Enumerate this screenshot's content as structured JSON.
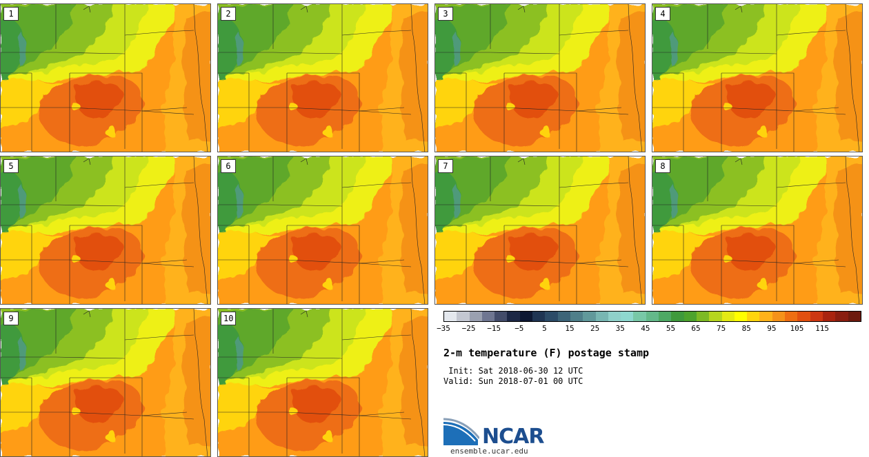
{
  "panels": [
    {
      "label": "1"
    },
    {
      "label": "2"
    },
    {
      "label": "3"
    },
    {
      "label": "4"
    },
    {
      "label": "5"
    },
    {
      "label": "6"
    },
    {
      "label": "7"
    },
    {
      "label": "8"
    },
    {
      "label": "9"
    },
    {
      "label": "10"
    }
  ],
  "legend": {
    "ticks": [
      "-35",
      "-25",
      "-15",
      "-5",
      "5",
      "15",
      "25",
      "35",
      "45",
      "55",
      "65",
      "75",
      "85",
      "95",
      "105",
      "115"
    ],
    "colors": [
      "#e4e8ee",
      "#c3c7d1",
      "#9aa0b0",
      "#6f7691",
      "#434c6a",
      "#1c2745",
      "#0d1833",
      "#1f3553",
      "#2c4b67",
      "#3d6478",
      "#4f7f8a",
      "#61999b",
      "#78b6b2",
      "#8fd0c9",
      "#8ed8cf",
      "#78c8a7",
      "#64b98a",
      "#4ea964",
      "#3f9a3c",
      "#4da32d",
      "#7dba24",
      "#b6d51f",
      "#e4ea14",
      "#ffff00",
      "#ffd40d",
      "#ffb21a",
      "#f59219",
      "#ee6e12",
      "#e2500f",
      "#cd3712",
      "#a9240f",
      "#8a1e10",
      "#6d1a0e"
    ],
    "title": "2-m temperature (F) postage stamp",
    "init": " Init: Sat 2018-06-30 12 UTC",
    "valid": "Valid: Sun 2018-07-01 00 UTC"
  },
  "logo": {
    "name": "NCAR",
    "url": "ensemble.ucar.edu"
  }
}
